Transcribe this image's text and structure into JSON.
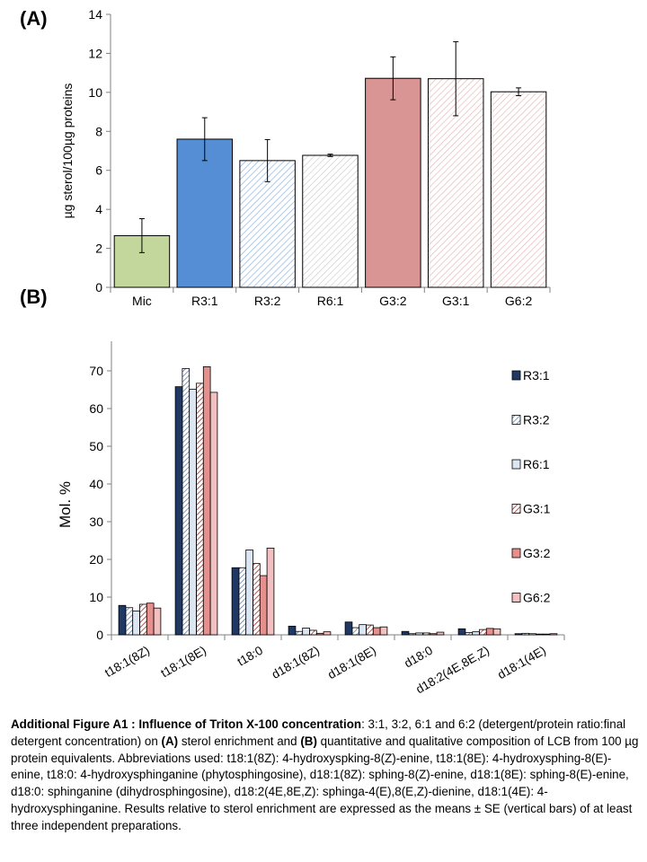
{
  "panel_labels": [
    "(A)",
    "(B)"
  ],
  "chart_data": [
    {
      "type": "bar",
      "panel": "(A)",
      "ylabel": "µg sterol/100µg proteins",
      "xlabel": "",
      "ylim": [
        0,
        14
      ],
      "yticks": [
        0,
        2,
        4,
        6,
        8,
        10,
        12,
        14
      ],
      "categories": [
        "Mic",
        "R3:1",
        "R3:2",
        "R6:1",
        "G3:2",
        "G3:1",
        "G6:2"
      ],
      "values": [
        2.65,
        7.6,
        6.5,
        6.77,
        10.72,
        10.7,
        10.03
      ],
      "errors": [
        0.87,
        1.1,
        1.08,
        0.06,
        1.1,
        1.9,
        0.2
      ],
      "colors": [
        "#c3d69b",
        "#558ed5",
        "#8eb4e3",
        "#c0c0c0",
        "#d99594",
        "#e6b9b8",
        "#e6b9b8"
      ],
      "patterns": [
        "solid",
        "solid",
        "hatch",
        "hatch",
        "solid",
        "hatch",
        "hatch"
      ]
    },
    {
      "type": "bar",
      "panel": "(B)",
      "ylabel": "Mol. %",
      "xlabel": "",
      "ylim": [
        0,
        75
      ],
      "yticks": [
        0,
        10,
        20,
        30,
        40,
        50,
        60,
        70
      ],
      "legend_position": "right",
      "categories": [
        "t18:1(8Z)",
        "t18:1(8E)",
        "t18:0",
        "d18:1(8Z)",
        "d18:1(8E)",
        "d18:0",
        "d18:2(4E,8E,Z)",
        "d18:1(4E)"
      ],
      "series": [
        {
          "name": "R3:1",
          "color": "#1f3864",
          "pattern": "solid",
          "values": [
            7.8,
            65.8,
            17.8,
            2.3,
            3.4,
            0.9,
            1.6,
            0.3
          ]
        },
        {
          "name": "R3:2",
          "color": "#dce6f2",
          "pattern": "hatch",
          "values": [
            7.2,
            70.6,
            17.8,
            0.9,
            1.9,
            0.3,
            0.6,
            0.4
          ]
        },
        {
          "name": "R6:1",
          "color": "#dce6f2",
          "pattern": "solid",
          "values": [
            6.3,
            65.1,
            22.5,
            1.8,
            2.7,
            0.5,
            0.8,
            0.3
          ]
        },
        {
          "name": "G3:1",
          "color": "#963634",
          "pattern": "hatch",
          "values": [
            8.1,
            66.7,
            18.9,
            1.2,
            2.6,
            0.5,
            1.4,
            0.2
          ]
        },
        {
          "name": "G3:2",
          "color": "#e6908e",
          "pattern": "solid",
          "values": [
            8.4,
            71.1,
            15.7,
            0.4,
            1.9,
            0.3,
            1.7,
            0.2
          ]
        },
        {
          "name": "G6:2",
          "color": "#f2c0c0",
          "pattern": "solid",
          "values": [
            7.1,
            64.3,
            23.0,
            0.8,
            2.1,
            0.7,
            1.6,
            0.3
          ]
        }
      ]
    }
  ],
  "caption": {
    "bold_title": "Additional Figure A1 : Influence of Triton X-100 concentration",
    "part1": ": 3:1, 3:2, 6:1 and 6:2 (detergent/protein ratio:final detergent concentration) on ",
    "bold_a": "(A)",
    "part2": " sterol enrichment and ",
    "bold_b": "(B)",
    "part3": " quantitative and qualitative composition of LCB from 100 µg protein equivalents. Abbreviations used: t18:1(8Z): 4-hydroxyspking-8(Z)-enine, t18:1(8E): 4-hydroxysphing-8(E)-enine, t18:0: 4-hydroxysphinganine (phytosphingosine), d18:1(8Z): sphing-8(Z)-enine, d18:1(8E): sphing-8(E)-enine, d18:0: sphinganine (dihydrosphingosine), d18:2(4E,8E,Z): sphinga-4(E),8(E,Z)-dienine, d18:1(4E): 4-hydroxysphinganine. Results relative to sterol enrichment are expressed as the means ± SE (vertical bars) of at least three independent preparations."
  }
}
